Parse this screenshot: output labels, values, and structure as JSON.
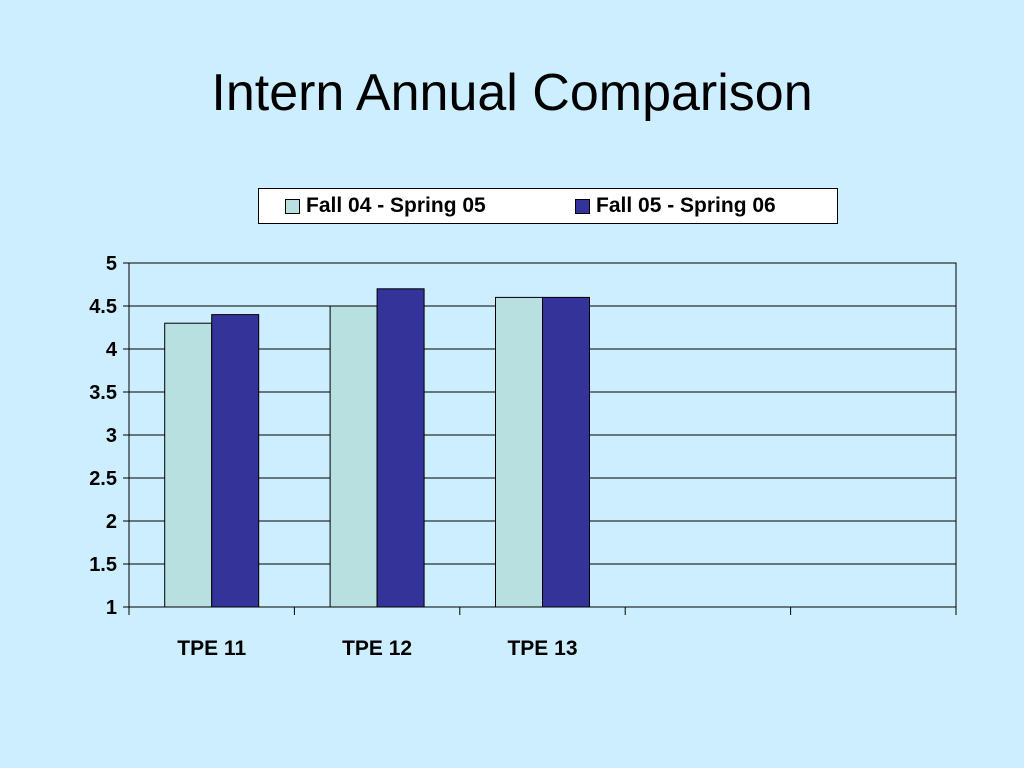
{
  "slide": {
    "title": "Intern Annual Comparison",
    "background_color": "#cceeff"
  },
  "chart_data": {
    "type": "bar",
    "title": "",
    "xlabel": "",
    "ylabel": "",
    "categories": [
      "TPE 11",
      "TPE 12",
      "TPE 13",
      "",
      ""
    ],
    "series": [
      {
        "name": "Fall 04 - Spring 05",
        "color": "#b8e0e0",
        "values": [
          4.3,
          4.5,
          4.6,
          null,
          null
        ]
      },
      {
        "name": "Fall 05 - Spring 06",
        "color": "#333399",
        "values": [
          4.4,
          4.7,
          4.6,
          null,
          null
        ]
      }
    ],
    "ylim": [
      1,
      5
    ],
    "yticks": [
      "1",
      "1.5",
      "2",
      "2.5",
      "3",
      "3.5",
      "4",
      "4.5",
      "5"
    ],
    "grid": true,
    "legend_position": "top"
  }
}
